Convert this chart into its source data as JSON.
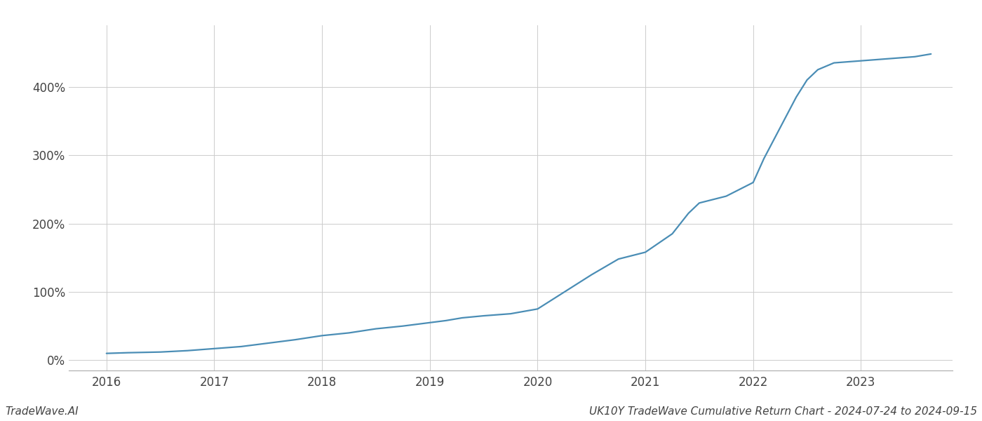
{
  "title": "UK10Y TradeWave Cumulative Return Chart - 2024-07-24 to 2024-09-15",
  "footer_left": "TradeWave.AI",
  "line_color": "#4a8db5",
  "background_color": "#ffffff",
  "grid_color": "#cccccc",
  "x_values": [
    2016.0,
    2016.2,
    2016.5,
    2016.75,
    2017.0,
    2017.25,
    2017.5,
    2017.75,
    2018.0,
    2018.25,
    2018.5,
    2018.75,
    2019.0,
    2019.15,
    2019.3,
    2019.5,
    2019.75,
    2020.0,
    2020.2,
    2020.5,
    2020.75,
    2021.0,
    2021.25,
    2021.4,
    2021.5,
    2021.75,
    2022.0,
    2022.1,
    2022.25,
    2022.4,
    2022.5,
    2022.6,
    2022.75,
    2023.0,
    2023.25,
    2023.5,
    2023.65
  ],
  "y_values": [
    10,
    11,
    12,
    14,
    17,
    20,
    25,
    30,
    36,
    40,
    46,
    50,
    55,
    58,
    62,
    65,
    68,
    75,
    95,
    125,
    148,
    158,
    185,
    215,
    230,
    240,
    260,
    295,
    340,
    385,
    410,
    425,
    435,
    438,
    441,
    444,
    448
  ],
  "ytick_values": [
    0,
    100,
    200,
    300,
    400
  ],
  "ytick_labels": [
    "0%",
    "100%",
    "200%",
    "300%",
    "400%"
  ],
  "xtick_values": [
    2016,
    2017,
    2018,
    2019,
    2020,
    2021,
    2022,
    2023
  ],
  "xlim": [
    2015.65,
    2023.85
  ],
  "ylim": [
    -15,
    490
  ],
  "line_width": 1.6,
  "spine_color": "#aaaaaa",
  "font_color": "#444444",
  "tick_font_size": 12,
  "footer_font_size": 11
}
